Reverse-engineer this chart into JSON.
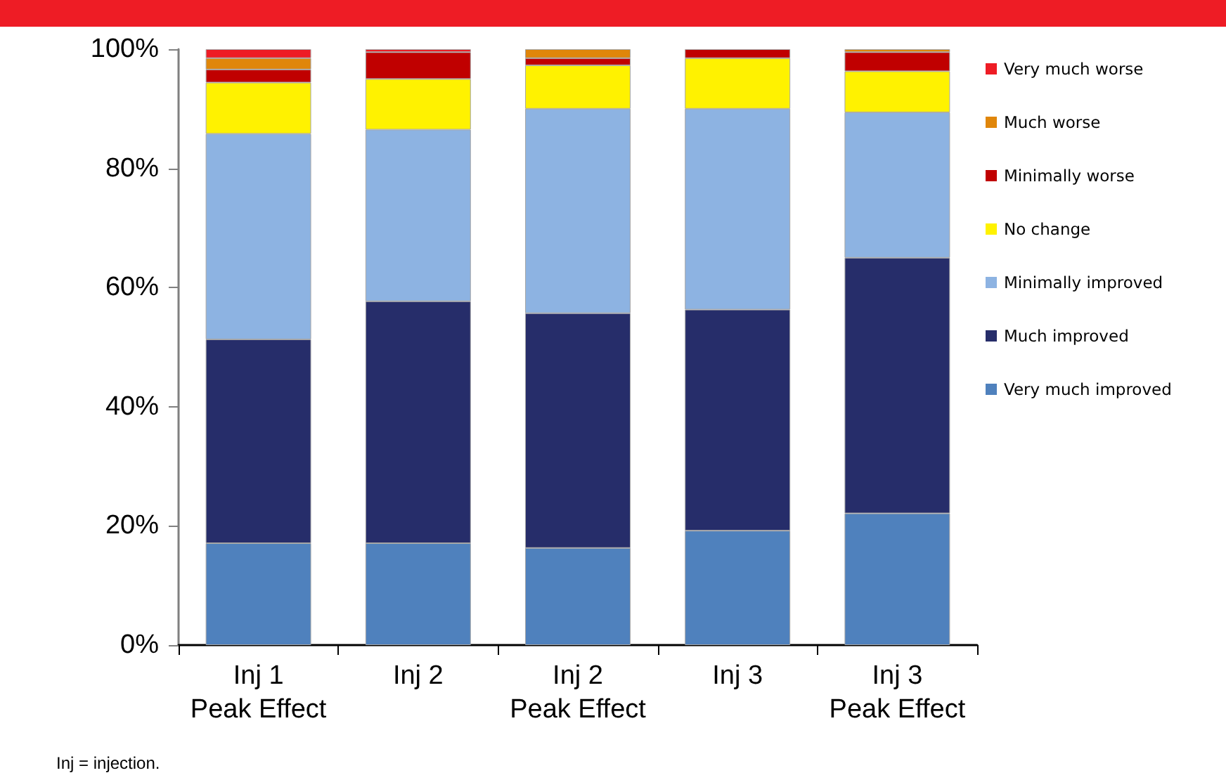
{
  "chart_data": {
    "type": "bar",
    "stacked": true,
    "categories": [
      "Inj 1\nPeak Effect",
      "Inj 2",
      "Inj 2\nPeak Effect",
      "Inj 3",
      "Inj 3\nPeak Effect"
    ],
    "series": [
      {
        "name": "Very much improved",
        "color": "#4f81bd",
        "values": [
          17.1,
          17.1,
          16.3,
          19.2,
          22.1
        ]
      },
      {
        "name": "Much improved",
        "color": "#262d6a",
        "values": [
          34.2,
          40.6,
          39.4,
          37.1,
          42.9
        ]
      },
      {
        "name": "Minimally improved",
        "color": "#8db3e2",
        "values": [
          34.5,
          28.8,
          34.3,
          33.7,
          24.4
        ]
      },
      {
        "name": "No change",
        "color": "#fff200",
        "values": [
          8.6,
          8.5,
          7.3,
          8.5,
          6.9
        ]
      },
      {
        "name": "Minimally worse",
        "color": "#c00000",
        "values": [
          2.2,
          4.5,
          1.2,
          1.5,
          3.2
        ]
      },
      {
        "name": "Much worse",
        "color": "#e0860a",
        "values": [
          1.9,
          0,
          1.5,
          0,
          0.5
        ]
      },
      {
        "name": "Very much worse",
        "color": "#ee1c25",
        "values": [
          1.5,
          0.5,
          0,
          0,
          0
        ]
      }
    ],
    "ylim": [
      0,
      100
    ],
    "yticks": [
      {
        "value": 0,
        "label": "0%"
      },
      {
        "value": 20,
        "label": "20%"
      },
      {
        "value": 40,
        "label": "40%"
      },
      {
        "value": 60,
        "label": "60%"
      },
      {
        "value": 80,
        "label": "80%"
      },
      {
        "value": 100,
        "label": "100%"
      }
    ],
    "legend": "right",
    "annotations": [
      "Inj = injection."
    ]
  }
}
